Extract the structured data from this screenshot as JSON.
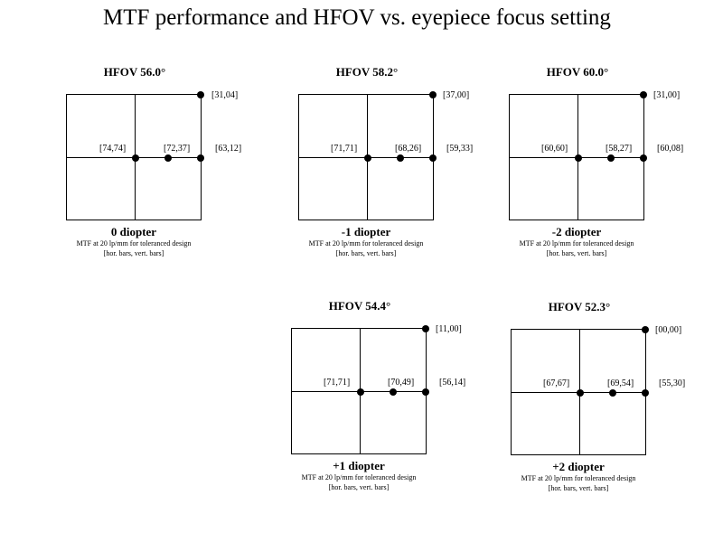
{
  "title": "MTF performance and HFOV vs. eyepiece focus setting",
  "panels": [
    {
      "hfov": "HFOV 56.0°",
      "diopter": "0 diopter",
      "mtf_center": "[74,74]",
      "mtf_mid": "[72,37]",
      "mtf_edge": "[63,12]",
      "mtf_corner": "[31,04]",
      "caption_line1": "MTF at 20 lp/mm for toleranced design",
      "caption_line2": "[hor. bars, vert. bars]"
    },
    {
      "hfov": "HFOV 58.2°",
      "diopter": "-1 diopter",
      "mtf_center": "[71,71]",
      "mtf_mid": "[68,26]",
      "mtf_edge": "[59,33]",
      "mtf_corner": "[37,00]",
      "caption_line1": "MTF at 20 lp/mm for toleranced design",
      "caption_line2": "[hor. bars, vert. bars]"
    },
    {
      "hfov": "HFOV 60.0°",
      "diopter": "-2 diopter",
      "mtf_center": "[60,60]",
      "mtf_mid": "[58,27]",
      "mtf_edge": "[60,08]",
      "mtf_corner": "[31,00]",
      "caption_line1": "MTF at 20 lp/mm for toleranced design",
      "caption_line2": "[hor. bars, vert. bars]"
    },
    {
      "hfov": "HFOV 54.4°",
      "diopter": "+1 diopter",
      "mtf_center": "[71,71]",
      "mtf_mid": "[70,49]",
      "mtf_edge": "[56,14]",
      "mtf_corner": "[11,00]",
      "caption_line1": "MTF at 20 lp/mm for toleranced design",
      "caption_line2": "[hor. bars, vert. bars]"
    },
    {
      "hfov": "HFOV 52.3°",
      "diopter": "+2 diopter",
      "mtf_center": "[67,67]",
      "mtf_mid": "[69,54]",
      "mtf_edge": "[55,30]",
      "mtf_corner": "[00,00]",
      "caption_line1": "MTF at 20 lp/mm for toleranced design",
      "caption_line2": "[hor. bars, vert. bars]"
    }
  ]
}
